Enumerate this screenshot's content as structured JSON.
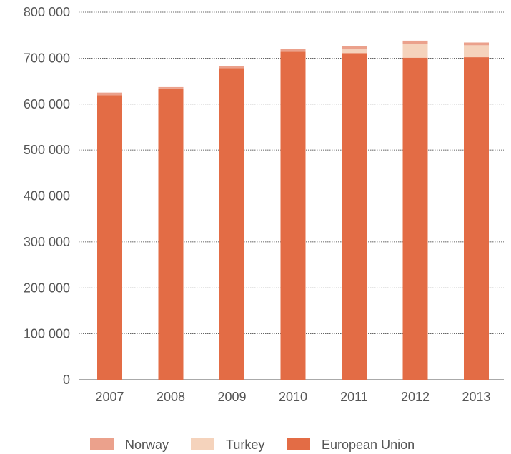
{
  "chart_data": {
    "type": "bar",
    "stacked": true,
    "title": "",
    "xlabel": "",
    "ylabel": "",
    "ylim": [
      0,
      800000
    ],
    "y_ticks": [
      0,
      100000,
      200000,
      300000,
      400000,
      500000,
      600000,
      700000,
      800000
    ],
    "y_tick_labels": [
      "0",
      "100 000",
      "200 000",
      "300 000",
      "400 000",
      "500 000",
      "600 000",
      "700 000",
      "800 000"
    ],
    "grid": true,
    "legend_position": "bottom",
    "categories": [
      "2007",
      "2008",
      "2009",
      "2010",
      "2011",
      "2012",
      "2013"
    ],
    "series": [
      {
        "name": "European Union",
        "color": "#e36c45",
        "values": [
          619000,
          634000,
          678000,
          714000,
          711000,
          701000,
          702000
        ]
      },
      {
        "name": "Turkey",
        "color": "#f5d3bc",
        "values": [
          0,
          0,
          0,
          0,
          8000,
          30000,
          26000
        ]
      },
      {
        "name": "Norway",
        "color": "#eba18c",
        "values": [
          6000,
          3000,
          5000,
          6000,
          7000,
          7000,
          6000
        ]
      }
    ],
    "legend_order": [
      "Norway",
      "Turkey",
      "European Union"
    ]
  }
}
